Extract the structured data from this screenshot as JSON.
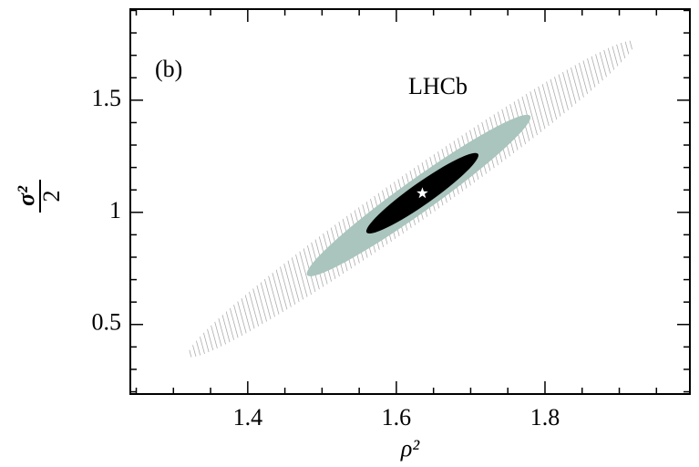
{
  "chart_data": {
    "type": "ellipse",
    "annotations": [
      "(b)",
      "LHCb"
    ],
    "xlabel": "ρ²",
    "ylabel_numerator": "σ²",
    "ylabel_denominator": "2",
    "xlim": [
      1.242,
      1.995
    ],
    "ylim": [
      0.19,
      1.906
    ],
    "xticks": [
      1.4,
      1.6,
      1.8
    ],
    "yticks": [
      0.5,
      1,
      1.5
    ],
    "xminorticks": [
      1.25,
      1.3,
      1.35,
      1.45,
      1.5,
      1.55,
      1.65,
      1.7,
      1.75,
      1.85,
      1.9,
      1.95
    ],
    "yminorticks": [
      0.2,
      0.3,
      0.4,
      0.6,
      0.7,
      0.8,
      0.9,
      1.1,
      1.2,
      1.3,
      1.4,
      1.6,
      1.7,
      1.8,
      1.9
    ],
    "regions": [
      {
        "x": [
          1.32,
          1.92
        ],
        "y": [
          0.36,
          1.76
        ],
        "xwidth": 0.11,
        "color": "#999999",
        "fill": "hatch"
      },
      {
        "x": [
          1.48,
          1.78
        ],
        "y": [
          0.72,
          1.43
        ],
        "xwidth": 0.075,
        "color": "#a9c5bd",
        "fill": "solid"
      },
      {
        "x": [
          1.56,
          1.71
        ],
        "y": [
          0.91,
          1.26
        ],
        "xwidth": 0.05,
        "color": "#000000",
        "fill": "solid"
      }
    ],
    "best_fit": {
      "x": 1.635,
      "y": 1.085,
      "color": "#ffffff"
    }
  }
}
